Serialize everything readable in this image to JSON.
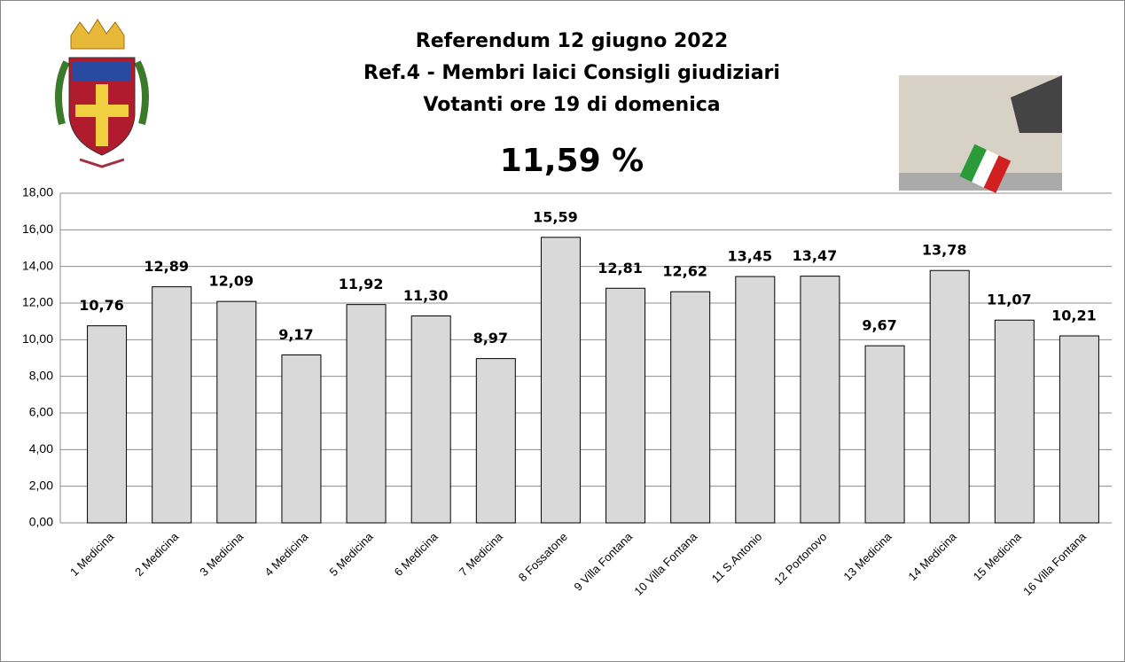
{
  "chart_data": {
    "type": "bar",
    "title": [
      "Referendum 12 giugno 2022",
      "Ref.4 - Membri laici Consigli giudiziari",
      "Votanti ore 19 di domenica"
    ],
    "annotation": "11,59 %",
    "categories": [
      "1 Medicina",
      "2 Medicina",
      "3 Medicina",
      "4 Medicina",
      "5 Medicina",
      "6 Medicina",
      "7 Medicina",
      "8 Fossatone",
      "9 Villa Fontana",
      "10 Villa Fontana",
      "11 S.Antonio",
      "12 Portonovo",
      "13 Medicina",
      "14 Medicina",
      "15 Medicina",
      "16 Villa Fontana"
    ],
    "values": [
      10.76,
      12.89,
      12.09,
      9.17,
      11.92,
      11.3,
      8.97,
      15.59,
      12.81,
      12.62,
      13.45,
      13.47,
      9.67,
      13.78,
      11.07,
      10.21
    ],
    "value_labels": [
      "10,76",
      "12,89",
      "12,09",
      "9,17",
      "11,92",
      "11,30",
      "8,97",
      "15,59",
      "12,81",
      "12,62",
      "13,45",
      "13,47",
      "9,67",
      "13,78",
      "11,07",
      "10,21"
    ],
    "color": "#d9d9d9",
    "ylim": [
      0,
      18
    ],
    "yticks": [
      {
        "value": 0,
        "label": "0,00"
      },
      {
        "value": 2,
        "label": "2,00"
      },
      {
        "value": 4,
        "label": "4,00"
      },
      {
        "value": 6,
        "label": "6,00"
      },
      {
        "value": 8,
        "label": "8,00"
      },
      {
        "value": 10,
        "label": "10,00"
      },
      {
        "value": 12,
        "label": "12,00"
      },
      {
        "value": 14,
        "label": "14,00"
      },
      {
        "value": 16,
        "label": "16,00"
      },
      {
        "value": 18,
        "label": "18,00"
      }
    ],
    "grid": true
  }
}
